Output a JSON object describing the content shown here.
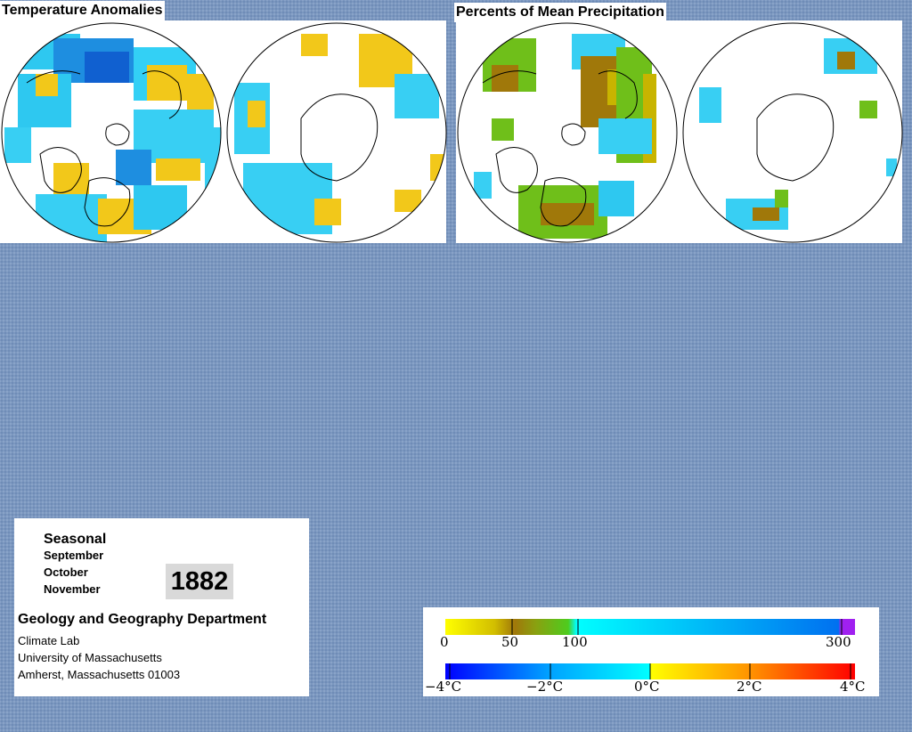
{
  "panels": {
    "temperature": {
      "title": "Temperature Anomalies"
    },
    "precipitation": {
      "title": "Percents of Mean Precipitation"
    }
  },
  "info": {
    "period_type": "Seasonal",
    "months": [
      "September",
      "October",
      "November"
    ],
    "year": "1882",
    "department": "Geology and Geography Department",
    "lines": [
      "Climate Lab",
      "University of Massachusetts",
      "Amherst, Massachusetts 01003"
    ]
  },
  "legend": {
    "precipitation": {
      "ticks": [
        "0",
        "50",
        "100",
        "300"
      ],
      "tick_values": [
        0,
        50,
        100,
        300
      ],
      "colors": [
        "#ffff00",
        "#c8b400",
        "#a0780a",
        "#6fbf1a",
        "#00ffff",
        "#0080ff",
        "#a020f0"
      ]
    },
    "temperature": {
      "ticks": [
        "−4°C",
        "−2°C",
        "0°C",
        "2°C",
        "4°C"
      ],
      "tick_values": [
        -4,
        -2,
        0,
        2,
        4
      ],
      "colors": [
        "#0000ff",
        "#00a0ff",
        "#00ffff",
        "#ffff00",
        "#ff8000",
        "#ff0000"
      ]
    }
  }
}
